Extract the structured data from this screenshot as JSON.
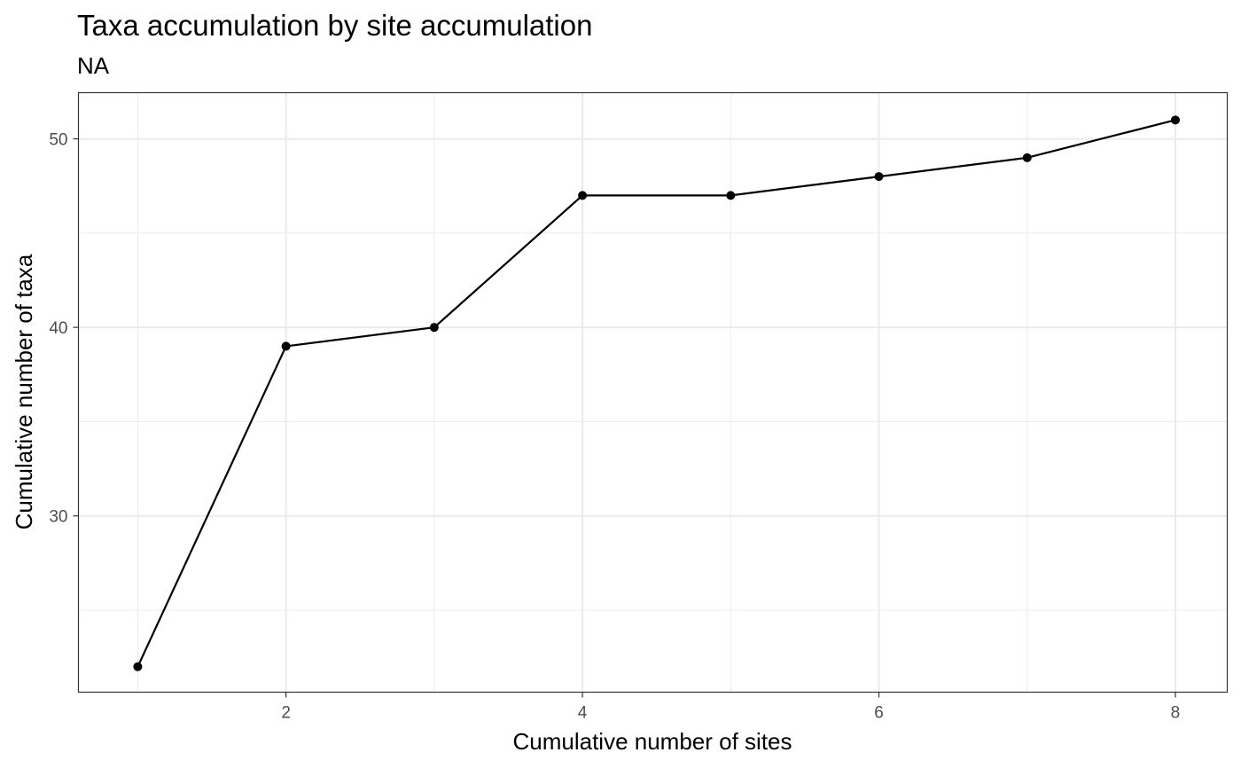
{
  "chart_data": {
    "type": "line",
    "title": "Taxa accumulation by site accumulation",
    "subtitle": "NA",
    "xlabel": "Cumulative number of sites",
    "ylabel": "Cumulative number of taxa",
    "x": [
      1,
      2,
      3,
      4,
      5,
      6,
      7,
      8
    ],
    "series": [
      {
        "values": [
          22,
          39,
          40,
          47,
          47,
          48,
          49,
          51
        ]
      }
    ],
    "xlim": [
      0.6,
      8.35
    ],
    "ylim": [
      20.65,
      52.45
    ],
    "x_major_ticks": [
      2,
      4,
      6,
      8
    ],
    "x_minor_ticks": [
      1,
      3,
      5,
      7
    ],
    "y_major_ticks": [
      30,
      40,
      50
    ],
    "y_minor_ticks": [
      25,
      35,
      45
    ],
    "grid": true,
    "line_color": "#000000",
    "point_color": "#000000",
    "grid_color": "#ebebeb",
    "panel_border_color": "#333333",
    "tick_label_color": "#4d4d4d"
  }
}
